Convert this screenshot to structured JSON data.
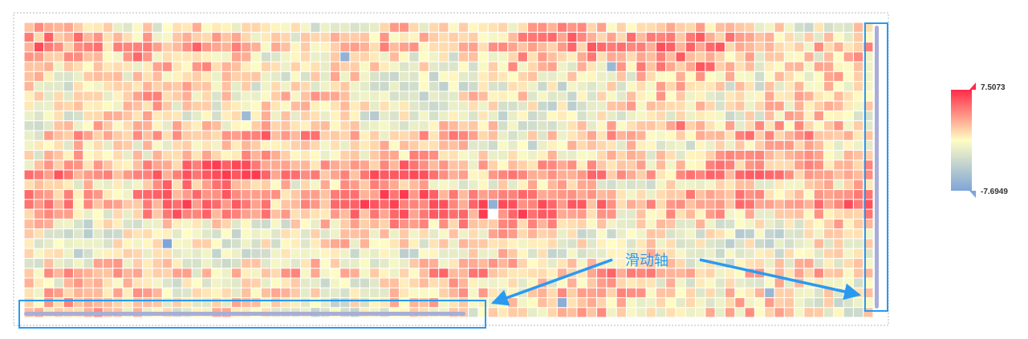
{
  "chart_data": {
    "type": "heatmap",
    "title": "",
    "xlabel": "",
    "ylabel": "",
    "grid": false,
    "legend": "right",
    "value_range": [
      -7.6949,
      7.5073
    ],
    "color_scale": [
      "#7fa5d8",
      "#fffdc4",
      "#ff3b4f"
    ],
    "rows": 30,
    "cols": 86,
    "row_profile": [
      0.6,
      1.8,
      2.6,
      1.2,
      0.9,
      0.2,
      -0.2,
      0.5,
      0.1,
      -0.5,
      0.8,
      2.0,
      0.6,
      1.2,
      2.4,
      3.6,
      1.0,
      3.0,
      3.6,
      2.2,
      0.4,
      -0.1,
      0.3,
      -0.6,
      0.6,
      2.0,
      0.5,
      1.2,
      0.8,
      0.5
    ],
    "hotspots": [
      {
        "row": 18,
        "col": 47,
        "value": -6.5
      },
      {
        "row": 19,
        "col": 46,
        "value": 7.5073
      },
      {
        "row": 18,
        "col": 46,
        "value": 7.3
      },
      {
        "row": 19,
        "col": 47,
        "value": 7.2
      },
      {
        "row": 18,
        "col": 41,
        "value": 6.8
      },
      {
        "row": 18,
        "col": 42,
        "value": 6.6
      },
      {
        "row": 19,
        "col": 42,
        "value": 6.2
      },
      {
        "row": 15,
        "col": 13,
        "value": 6.4
      },
      {
        "row": 16,
        "col": 14,
        "value": 6.1
      },
      {
        "row": 16,
        "col": 16,
        "value": 5.9
      },
      {
        "row": 1,
        "col": 55,
        "value": 6.2
      },
      {
        "row": 2,
        "col": 67,
        "value": 5.8
      },
      {
        "row": 3,
        "col": 11,
        "value": 5.6
      },
      {
        "row": 10,
        "col": 66,
        "value": 5.4
      },
      {
        "row": 22,
        "col": 14,
        "value": -7.6949
      },
      {
        "row": 28,
        "col": 54,
        "value": -6.9
      },
      {
        "row": 3,
        "col": 32,
        "value": -6.4
      },
      {
        "row": 4,
        "col": 59,
        "value": -5.8
      },
      {
        "row": 9,
        "col": 22,
        "value": -5.6
      },
      {
        "row": 27,
        "col": 75,
        "value": -5.9
      }
    ],
    "seed": 20240611
  },
  "legend": {
    "max_label": "7.5073",
    "min_label": "-7.6949",
    "colors": {
      "top": "#ff2b48",
      "mid": "#fffdc4",
      "bottom": "#7fa5d8"
    }
  },
  "annotation": {
    "label": "滑动轴",
    "color": "#2a9af0"
  },
  "scrollbar": {
    "color": "#a9aed6",
    "horizontal_visible_fraction": 0.52,
    "vertical_visible_fraction": 1.0
  }
}
